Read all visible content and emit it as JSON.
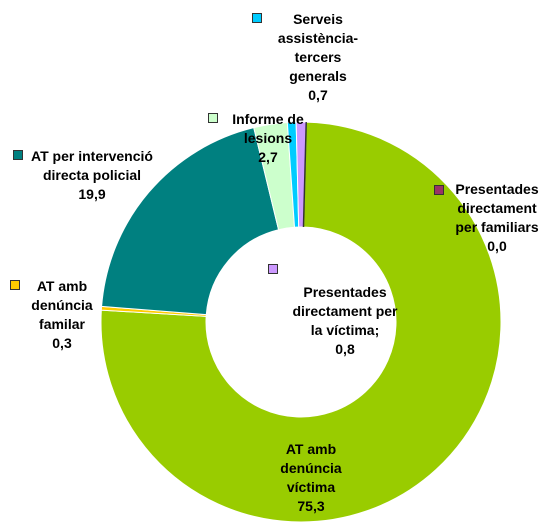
{
  "chart_data": {
    "type": "donut",
    "categories": [
      "AT amb denúncia víctima",
      "AT amb denúncia familar",
      "AT per intervenció directa policial",
      "Informe de lesions",
      "Serveis assistència-tercers generals",
      "Presentades directament per la víctima;",
      "Presentades directament per familiars"
    ],
    "values": [
      75.3,
      0.3,
      19.9,
      2.7,
      0.7,
      0.8,
      0.0
    ],
    "value_labels": [
      "75,3",
      "0,3",
      "19,9",
      "2,7",
      "0,7",
      "0,8",
      "0,0"
    ],
    "colors": [
      "#99cc00",
      "#ffcc00",
      "#008080",
      "#ccffcc",
      "#00ccff",
      "#cc99ff",
      "#993366"
    ]
  }
}
